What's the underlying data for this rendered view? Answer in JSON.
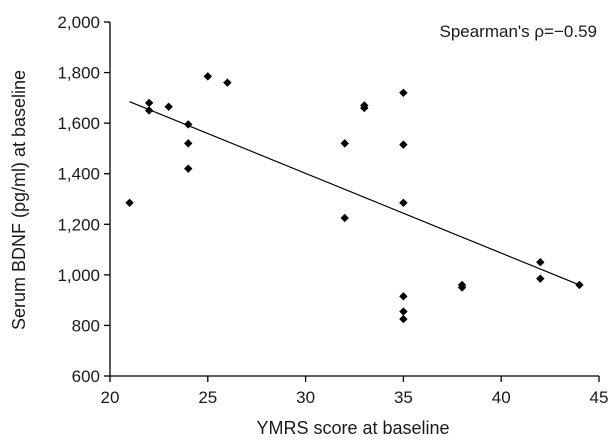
{
  "chart_data": {
    "type": "scatter",
    "title": "",
    "xlabel": "YMRS score at baseline",
    "ylabel": "Serum BDNF (pg/ml) at baseline",
    "xlim": [
      20,
      45
    ],
    "ylim": [
      600,
      2000
    ],
    "x_ticks": [
      20,
      25,
      30,
      35,
      40,
      45
    ],
    "x_tick_labels": [
      "20",
      "25",
      "30",
      "35",
      "40",
      "45"
    ],
    "y_ticks": [
      600,
      800,
      1000,
      1200,
      1400,
      1600,
      1800,
      2000
    ],
    "y_tick_labels": [
      "600",
      "800",
      "1,000",
      "1,200",
      "1,400",
      "1,600",
      "1,800",
      "2,000"
    ],
    "grid": false,
    "annotation": "Spearman's ρ=−0.59",
    "marker": "diamond",
    "points": [
      {
        "x": 21,
        "y": 1285
      },
      {
        "x": 22,
        "y": 1680
      },
      {
        "x": 22,
        "y": 1650
      },
      {
        "x": 23,
        "y": 1665
      },
      {
        "x": 24,
        "y": 1595
      },
      {
        "x": 24,
        "y": 1520
      },
      {
        "x": 24,
        "y": 1420
      },
      {
        "x": 25,
        "y": 1785
      },
      {
        "x": 26,
        "y": 1760
      },
      {
        "x": 32,
        "y": 1520
      },
      {
        "x": 32,
        "y": 1225
      },
      {
        "x": 33,
        "y": 1670
      },
      {
        "x": 33,
        "y": 1660
      },
      {
        "x": 35,
        "y": 1720
      },
      {
        "x": 35,
        "y": 1515
      },
      {
        "x": 35,
        "y": 1285
      },
      {
        "x": 35,
        "y": 915
      },
      {
        "x": 35,
        "y": 855
      },
      {
        "x": 35,
        "y": 825
      },
      {
        "x": 38,
        "y": 960
      },
      {
        "x": 38,
        "y": 950
      },
      {
        "x": 42,
        "y": 1050
      },
      {
        "x": 42,
        "y": 985
      },
      {
        "x": 44,
        "y": 960
      }
    ],
    "fit_line": {
      "x": [
        21,
        44
      ],
      "y": [
        1685,
        960
      ]
    }
  }
}
